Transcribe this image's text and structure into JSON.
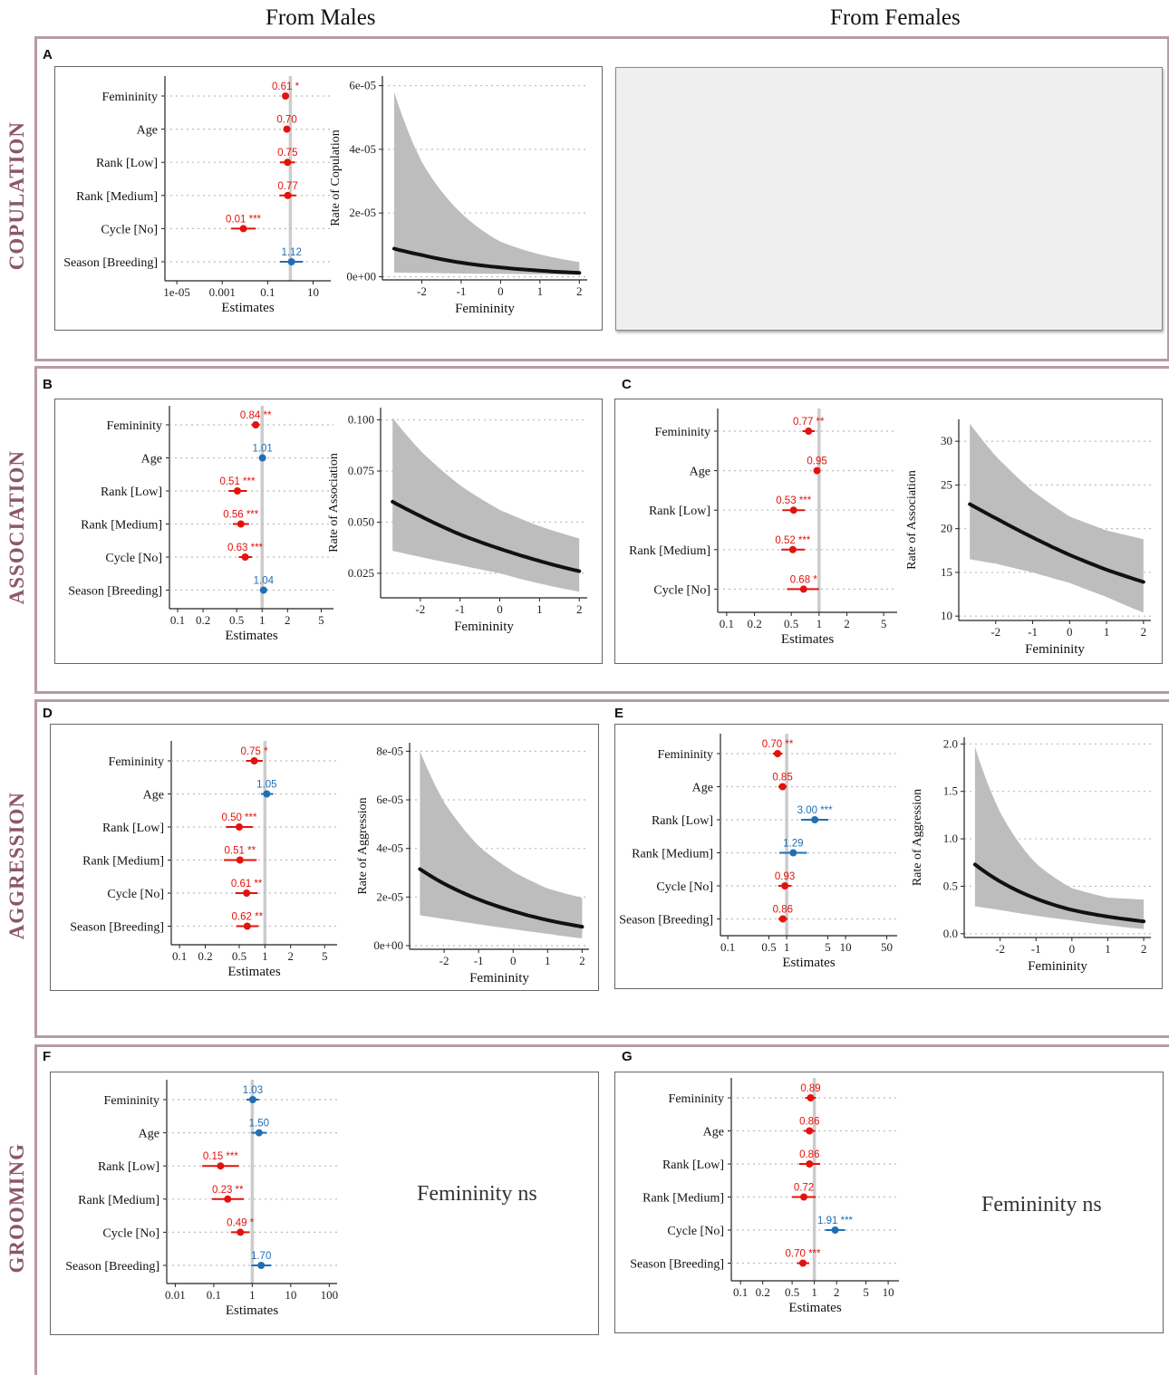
{
  "headers": {
    "males": "From Males",
    "females": "From Females"
  },
  "rows": {
    "copulation": "COPULATION",
    "association": "ASSOCIATION",
    "aggression": "AGGRESSION",
    "grooming": "GROOMING"
  },
  "panel_labels": {
    "A": "A",
    "B": "B",
    "C": "C",
    "D": "D",
    "E": "E",
    "F": "F",
    "G": "G"
  },
  "ns_text": {
    "F": "Femininity ns",
    "G": "Femininity ns"
  },
  "colors": {
    "positive": "#1f6fb5",
    "negative": "#e3120b",
    "ribbon": "#bdbdbd",
    "line": "#111111",
    "refline": "#cccccc",
    "label": "#8b5868"
  },
  "chart_data": [
    {
      "id": "A-forest",
      "type": "scatter",
      "xlabel": "Estimates",
      "scale": "log",
      "ticks": [
        1e-05,
        0.001,
        0.1,
        10
      ],
      "tick_labels": [
        "1e-05",
        "0.001",
        "0.1",
        "10"
      ],
      "xlim": [
        3e-06,
        60
      ],
      "rows": [
        {
          "term": "Femininity",
          "est": 0.61,
          "lo": 0.44,
          "hi": 0.85,
          "label": "0.61 *",
          "dir": "neg"
        },
        {
          "term": "Age",
          "est": 0.7,
          "lo": 0.5,
          "hi": 1.0,
          "label": "0.70",
          "dir": "neg"
        },
        {
          "term": "Rank [Low]",
          "est": 0.75,
          "lo": 0.35,
          "hi": 1.6,
          "label": "0.75",
          "dir": "neg"
        },
        {
          "term": "Rank [Medium]",
          "est": 0.77,
          "lo": 0.33,
          "hi": 1.8,
          "label": "0.77",
          "dir": "neg"
        },
        {
          "term": "Cycle [No]",
          "est": 0.0085,
          "lo": 0.0025,
          "hi": 0.03,
          "label": "0.01 ***",
          "dir": "neg"
        },
        {
          "term": "Season [Breeding]",
          "est": 1.12,
          "lo": 0.35,
          "hi": 3.6,
          "label": "1.12",
          "dir": "pos"
        }
      ]
    },
    {
      "id": "A-curve",
      "type": "line",
      "xlabel": "Femininity",
      "ylabel": "Rate of  Copulation",
      "xticks": [
        -2,
        -1,
        0,
        1,
        2
      ],
      "xtick_labels": [
        "-2",
        "-1",
        "0",
        "1",
        "2"
      ],
      "xlim": [
        -3,
        2.2
      ],
      "yticks": [
        0,
        2e-05,
        4e-05,
        6e-05
      ],
      "ytick_labels": [
        "0e+00",
        "2e-05",
        "4e-05",
        "6e-05"
      ],
      "ylim": [
        -1e-06,
        6.3e-05
      ],
      "x": [
        -2.7,
        -2.0,
        -1.0,
        0.0,
        1.0,
        2.0
      ],
      "y": [
        8.8e-06,
        6.8e-06,
        4.4e-06,
        2.9e-06,
        1.9e-06,
        1.2e-06
      ],
      "lower": [
        1.3e-06,
        1.2e-06,
        1e-06,
        9e-07,
        8e-07,
        6e-07
      ],
      "upper": [
        5.8e-05,
        3.6e-05,
        2e-05,
        1.1e-05,
        7e-06,
        4.6e-06
      ]
    },
    {
      "id": "B-forest",
      "type": "scatter",
      "xlabel": "Estimates",
      "scale": "log",
      "ticks": [
        0.1,
        0.2,
        0.5,
        1,
        2,
        5
      ],
      "tick_labels": [
        "0.1",
        "0.2",
        "0.5",
        "1",
        "2",
        "5"
      ],
      "xlim": [
        0.08,
        7
      ],
      "rows": [
        {
          "term": "Femininity",
          "est": 0.84,
          "lo": 0.75,
          "hi": 0.94,
          "label": "0.84 **",
          "dir": "neg"
        },
        {
          "term": "Age",
          "est": 1.01,
          "lo": 0.96,
          "hi": 1.07,
          "label": "1.01",
          "dir": "pos"
        },
        {
          "term": "Rank [Low]",
          "est": 0.51,
          "lo": 0.4,
          "hi": 0.66,
          "label": "0.51 ***",
          "dir": "neg"
        },
        {
          "term": "Rank [Medium]",
          "est": 0.56,
          "lo": 0.45,
          "hi": 0.7,
          "label": "0.56 ***",
          "dir": "neg"
        },
        {
          "term": "Cycle [No]",
          "est": 0.63,
          "lo": 0.53,
          "hi": 0.76,
          "label": "0.63 ***",
          "dir": "neg"
        },
        {
          "term": "Season [Breeding]",
          "est": 1.04,
          "lo": 0.94,
          "hi": 1.15,
          "label": "1.04",
          "dir": "pos"
        }
      ]
    },
    {
      "id": "B-curve",
      "type": "line",
      "xlabel": "Femininity",
      "ylabel": "Rate of  Association",
      "xticks": [
        -2,
        -1,
        0,
        1,
        2
      ],
      "xtick_labels": [
        "-2",
        "-1",
        "0",
        "1",
        "2"
      ],
      "xlim": [
        -3,
        2.2
      ],
      "yticks": [
        0.025,
        0.05,
        0.075,
        0.1
      ],
      "ytick_labels": [
        "0.025",
        "0.050",
        "0.075",
        "0.100"
      ],
      "ylim": [
        0.013,
        0.106
      ],
      "x": [
        -2.7,
        -2.0,
        -1.0,
        0.0,
        1.0,
        2.0
      ],
      "y": [
        0.06,
        0.053,
        0.044,
        0.037,
        0.031,
        0.026
      ],
      "lower": [
        0.036,
        0.033,
        0.029,
        0.025,
        0.02,
        0.016
      ],
      "upper": [
        0.101,
        0.085,
        0.068,
        0.056,
        0.048,
        0.042
      ]
    },
    {
      "id": "C-forest",
      "type": "scatter",
      "xlabel": "Estimates",
      "scale": "log",
      "ticks": [
        0.1,
        0.2,
        0.5,
        1,
        2,
        5
      ],
      "tick_labels": [
        "0.1",
        "0.2",
        "0.5",
        "1",
        "2",
        "5"
      ],
      "xlim": [
        0.08,
        7
      ],
      "rows": [
        {
          "term": "Femininity",
          "est": 0.77,
          "lo": 0.66,
          "hi": 0.9,
          "label": "0.77 **",
          "dir": "neg"
        },
        {
          "term": "Age",
          "est": 0.95,
          "lo": 0.88,
          "hi": 1.03,
          "label": "0.95",
          "dir": "neg"
        },
        {
          "term": "Rank [Low]",
          "est": 0.53,
          "lo": 0.4,
          "hi": 0.7,
          "label": "0.53 ***",
          "dir": "neg"
        },
        {
          "term": "Rank [Medium]",
          "est": 0.52,
          "lo": 0.39,
          "hi": 0.7,
          "label": "0.52 ***",
          "dir": "neg"
        },
        {
          "term": "Cycle [No]",
          "est": 0.68,
          "lo": 0.45,
          "hi": 1.0,
          "label": "0.68 *",
          "dir": "neg"
        }
      ]
    },
    {
      "id": "C-curve",
      "type": "line",
      "xlabel": "Femininity",
      "ylabel": "Rate of  Association",
      "xticks": [
        -2,
        -1,
        0,
        1,
        2
      ],
      "xtick_labels": [
        "-2",
        "-1",
        "0",
        "1",
        "2"
      ],
      "xlim": [
        -3,
        2.2
      ],
      "yticks": [
        10,
        15,
        20,
        25,
        30
      ],
      "ytick_labels": [
        "10",
        "15",
        "20",
        "25",
        "30"
      ],
      "ylim": [
        9.5,
        32.5
      ],
      "x": [
        -2.7,
        -2.0,
        -1.0,
        0.0,
        1.0,
        2.0
      ],
      "y": [
        22.8,
        21.2,
        19.0,
        17.0,
        15.3,
        13.9
      ],
      "lower": [
        16.5,
        16.0,
        15.0,
        13.8,
        12.2,
        10.4
      ],
      "upper": [
        32.0,
        28.3,
        24.3,
        21.4,
        19.8,
        18.8
      ]
    },
    {
      "id": "D-forest",
      "type": "scatter",
      "xlabel": "Estimates",
      "scale": "log",
      "ticks": [
        0.1,
        0.2,
        0.5,
        1,
        2,
        5
      ],
      "tick_labels": [
        "0.1",
        "0.2",
        "0.5",
        "1",
        "2",
        "5"
      ],
      "xlim": [
        0.08,
        7
      ],
      "rows": [
        {
          "term": "Femininity",
          "est": 0.75,
          "lo": 0.6,
          "hi": 0.94,
          "label": "0.75 *",
          "dir": "neg"
        },
        {
          "term": "Age",
          "est": 1.05,
          "lo": 0.9,
          "hi": 1.25,
          "label": "1.05",
          "dir": "pos"
        },
        {
          "term": "Rank [Low]",
          "est": 0.5,
          "lo": 0.35,
          "hi": 0.72,
          "label": "0.50 ***",
          "dir": "neg"
        },
        {
          "term": "Rank [Medium]",
          "est": 0.51,
          "lo": 0.33,
          "hi": 0.8,
          "label": "0.51 **",
          "dir": "neg"
        },
        {
          "term": "Cycle [No]",
          "est": 0.61,
          "lo": 0.45,
          "hi": 0.82,
          "label": "0.61 **",
          "dir": "neg"
        },
        {
          "term": "Season [Breeding]",
          "est": 0.62,
          "lo": 0.46,
          "hi": 0.84,
          "label": "0.62 **",
          "dir": "neg"
        }
      ]
    },
    {
      "id": "D-curve",
      "type": "line",
      "xlabel": "Femininity",
      "ylabel": "Rate of Aggression",
      "xticks": [
        -2,
        -1,
        0,
        1,
        2
      ],
      "xtick_labels": [
        "-2",
        "-1",
        "0",
        "1",
        "2"
      ],
      "xlim": [
        -3,
        2.2
      ],
      "yticks": [
        0,
        2e-05,
        4e-05,
        6e-05,
        8e-05
      ],
      "ytick_labels": [
        "0e+00",
        "2e-05",
        "4e-05",
        "6e-05",
        "8e-05"
      ],
      "ylim": [
        -1.5e-06,
        8.35e-05
      ],
      "x": [
        -2.7,
        -2.0,
        -1.0,
        0.0,
        1.0,
        2.0
      ],
      "y": [
        3.15e-05,
        2.55e-05,
        1.9e-05,
        1.42e-05,
        1.05e-05,
        7.8e-06
      ],
      "lower": [
        1.25e-05,
        1.1e-05,
        8.8e-06,
        6.8e-06,
        4.9e-06,
        3e-06
      ],
      "upper": [
        8e-05,
        5.9e-05,
        4.1e-05,
        3.05e-05,
        2.35e-05,
        1.97e-05
      ]
    },
    {
      "id": "E-forest",
      "type": "scatter",
      "xlabel": "Estimates",
      "scale": "log",
      "ticks": [
        0.1,
        0.5,
        1,
        5,
        10,
        50
      ],
      "tick_labels": [
        "0.1",
        "0.5",
        "1",
        "5",
        "10",
        "50"
      ],
      "xlim": [
        0.075,
        75
      ],
      "rows": [
        {
          "term": "Femininity",
          "est": 0.7,
          "lo": 0.58,
          "hi": 0.85,
          "label": "0.70 **",
          "dir": "neg"
        },
        {
          "term": "Age",
          "est": 0.85,
          "lo": 0.72,
          "hi": 1.0,
          "label": "0.85",
          "dir": "neg"
        },
        {
          "term": "Rank [Low]",
          "est": 3.0,
          "lo": 1.75,
          "hi": 5.1,
          "label": "3.00 ***",
          "dir": "pos"
        },
        {
          "term": "Rank [Medium]",
          "est": 1.29,
          "lo": 0.75,
          "hi": 2.2,
          "label": "1.29",
          "dir": "pos"
        },
        {
          "term": "Cycle [No]",
          "est": 0.93,
          "lo": 0.72,
          "hi": 1.2,
          "label": "0.93",
          "dir": "neg"
        },
        {
          "term": "Season [Breeding]",
          "est": 0.86,
          "lo": 0.72,
          "hi": 1.03,
          "label": "0.86",
          "dir": "neg"
        }
      ]
    },
    {
      "id": "E-curve",
      "type": "line",
      "xlabel": "Femininity",
      "ylabel": "Rate of Aggression",
      "xticks": [
        -2,
        -1,
        0,
        1,
        2
      ],
      "xtick_labels": [
        "-2",
        "-1",
        "0",
        "1",
        "2"
      ],
      "xlim": [
        -3,
        2.2
      ],
      "yticks": [
        0,
        0.5,
        1.0,
        1.5,
        2.0
      ],
      "ytick_labels": [
        "0.0",
        "0.5",
        "1.0",
        "1.5",
        "2.0"
      ],
      "ylim": [
        -0.04,
        2.07
      ],
      "x": [
        -2.7,
        -2.0,
        -1.0,
        0.0,
        1.0,
        2.0
      ],
      "y": [
        0.73,
        0.55,
        0.37,
        0.25,
        0.18,
        0.13
      ],
      "lower": [
        0.29,
        0.25,
        0.19,
        0.14,
        0.09,
        0.05
      ],
      "upper": [
        1.97,
        1.28,
        0.74,
        0.48,
        0.38,
        0.36
      ]
    },
    {
      "id": "F-forest",
      "type": "scatter",
      "xlabel": "Estimates",
      "scale": "log",
      "ticks": [
        0.01,
        0.1,
        1,
        10,
        100
      ],
      "tick_labels": [
        "0.01",
        "0.1",
        "1",
        "10",
        "100"
      ],
      "xlim": [
        0.006,
        160
      ],
      "rows": [
        {
          "term": "Femininity",
          "est": 1.03,
          "lo": 0.7,
          "hi": 1.5,
          "label": "1.03",
          "dir": "pos"
        },
        {
          "term": "Age",
          "est": 1.5,
          "lo": 0.95,
          "hi": 2.4,
          "label": "1.50",
          "dir": "pos"
        },
        {
          "term": "Rank [Low]",
          "est": 0.15,
          "lo": 0.05,
          "hi": 0.45,
          "label": "0.15 ***",
          "dir": "neg"
        },
        {
          "term": "Rank [Medium]",
          "est": 0.23,
          "lo": 0.09,
          "hi": 0.6,
          "label": "0.23 **",
          "dir": "neg"
        },
        {
          "term": "Cycle [No]",
          "est": 0.49,
          "lo": 0.28,
          "hi": 0.85,
          "label": "0.49 *",
          "dir": "neg"
        },
        {
          "term": "Season [Breeding]",
          "est": 1.7,
          "lo": 0.95,
          "hi": 3.1,
          "label": "1.70",
          "dir": "pos"
        }
      ]
    },
    {
      "id": "G-forest",
      "type": "scatter",
      "xlabel": "Estimates",
      "scale": "log",
      "ticks": [
        0.1,
        0.2,
        0.5,
        1,
        2,
        5,
        10
      ],
      "tick_labels": [
        "0.1",
        "0.2",
        "0.5",
        "1",
        "2",
        "5",
        "10"
      ],
      "xlim": [
        0.075,
        14
      ],
      "rows": [
        {
          "term": "Femininity",
          "est": 0.89,
          "lo": 0.75,
          "hi": 1.05,
          "label": "0.89",
          "dir": "neg"
        },
        {
          "term": "Age",
          "est": 0.86,
          "lo": 0.72,
          "hi": 1.03,
          "label": "0.86",
          "dir": "neg"
        },
        {
          "term": "Rank [Low]",
          "est": 0.86,
          "lo": 0.62,
          "hi": 1.2,
          "label": "0.86",
          "dir": "neg"
        },
        {
          "term": "Rank [Medium]",
          "est": 0.72,
          "lo": 0.5,
          "hi": 1.05,
          "label": "0.72",
          "dir": "neg"
        },
        {
          "term": "Cycle [No]",
          "est": 1.91,
          "lo": 1.4,
          "hi": 2.6,
          "label": "1.91 ***",
          "dir": "pos"
        },
        {
          "term": "Season [Breeding]",
          "est": 0.7,
          "lo": 0.58,
          "hi": 0.85,
          "label": "0.70 ***",
          "dir": "neg"
        }
      ]
    }
  ]
}
